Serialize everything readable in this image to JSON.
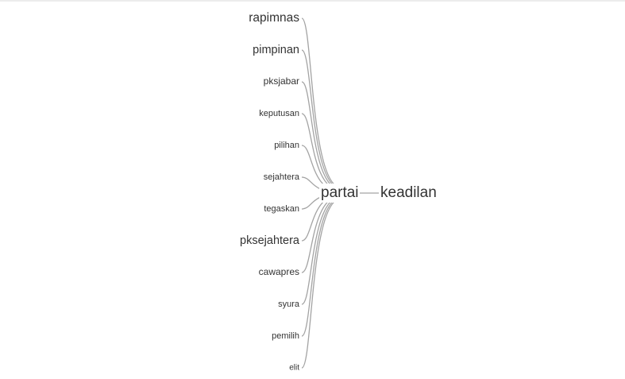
{
  "tree": {
    "center": "partai",
    "right": [
      "keadilan"
    ],
    "left": [
      {
        "word": "rapimnas",
        "weight": 5
      },
      {
        "word": "pimpinan",
        "weight": 4
      },
      {
        "word": "pksjabar",
        "weight": 3
      },
      {
        "word": "keputusan",
        "weight": 2
      },
      {
        "word": "pilihan",
        "weight": 2
      },
      {
        "word": "sejahtera",
        "weight": 2
      },
      {
        "word": "tegaskan",
        "weight": 2
      },
      {
        "word": "pksejahtera",
        "weight": 4
      },
      {
        "word": "cawapres",
        "weight": 3
      },
      {
        "word": "syura",
        "weight": 2
      },
      {
        "word": "pemilih",
        "weight": 2
      },
      {
        "word": "elit",
        "weight": 1
      }
    ]
  },
  "colors": {
    "text": "#333333",
    "link": "#a3a3a3",
    "background": "#ffffff"
  }
}
